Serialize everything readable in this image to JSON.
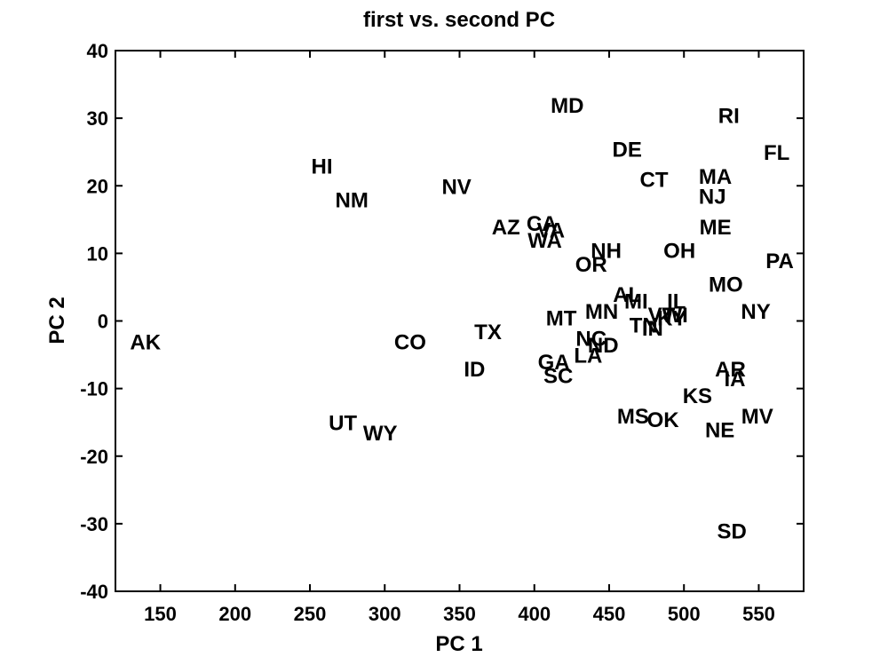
{
  "chart_data": {
    "type": "scatter",
    "title": "first vs. second PC",
    "xlabel": "PC 1",
    "ylabel": "PC 2",
    "xlim": [
      120,
      580
    ],
    "ylim": [
      -40,
      40
    ],
    "xticks": [
      150,
      200,
      250,
      300,
      350,
      400,
      450,
      500,
      550
    ],
    "yticks": [
      -40,
      -30,
      -20,
      -10,
      0,
      10,
      20,
      30,
      40
    ],
    "marker": "text-label",
    "grid": false,
    "box": true,
    "points": [
      {
        "label": "AK",
        "x": 140,
        "y": -3
      },
      {
        "label": "HI",
        "x": 258,
        "y": 23
      },
      {
        "label": "NM",
        "x": 278,
        "y": 18
      },
      {
        "label": "UT",
        "x": 272,
        "y": -15
      },
      {
        "label": "WY",
        "x": 297,
        "y": -16.5
      },
      {
        "label": "CO",
        "x": 317,
        "y": -3
      },
      {
        "label": "NV",
        "x": 348,
        "y": 20
      },
      {
        "label": "TX",
        "x": 369,
        "y": -1.5
      },
      {
        "label": "ID",
        "x": 360,
        "y": -7
      },
      {
        "label": "AZ",
        "x": 381,
        "y": 14
      },
      {
        "label": "CA",
        "x": 405,
        "y": 14.5
      },
      {
        "label": "VA",
        "x": 411,
        "y": 13.5
      },
      {
        "label": "WA",
        "x": 407,
        "y": 12
      },
      {
        "label": "MD",
        "x": 422,
        "y": 32
      },
      {
        "label": "MT",
        "x": 418,
        "y": 0.5
      },
      {
        "label": "GA",
        "x": 413,
        "y": -6
      },
      {
        "label": "SC",
        "x": 416,
        "y": -8
      },
      {
        "label": "NC",
        "x": 438,
        "y": -2.5
      },
      {
        "label": "LA",
        "x": 436,
        "y": -5
      },
      {
        "label": "ND",
        "x": 446,
        "y": -3.5
      },
      {
        "label": "MN",
        "x": 445,
        "y": 1.5
      },
      {
        "label": "NH",
        "x": 448,
        "y": 10.5
      },
      {
        "label": "OR",
        "x": 438,
        "y": 8.5
      },
      {
        "label": "AL",
        "x": 462,
        "y": 4
      },
      {
        "label": "MI",
        "x": 468,
        "y": 3
      },
      {
        "label": "TN",
        "x": 473,
        "y": -0.5
      },
      {
        "label": "IN",
        "x": 479,
        "y": -1
      },
      {
        "label": "VT",
        "x": 485,
        "y": 1
      },
      {
        "label": "KY",
        "x": 492,
        "y": 0.5
      },
      {
        "label": "WI",
        "x": 494,
        "y": 1
      },
      {
        "label": "IL",
        "x": 495,
        "y": 3
      },
      {
        "label": "DE",
        "x": 462,
        "y": 25.5
      },
      {
        "label": "CT",
        "x": 480,
        "y": 21
      },
      {
        "label": "OH",
        "x": 497,
        "y": 10.5
      },
      {
        "label": "MS",
        "x": 466,
        "y": -14
      },
      {
        "label": "OK",
        "x": 486,
        "y": -14.5
      },
      {
        "label": "KS",
        "x": 509,
        "y": -11
      },
      {
        "label": "MA",
        "x": 521,
        "y": 21.5
      },
      {
        "label": "NJ",
        "x": 519,
        "y": 18.5
      },
      {
        "label": "ME",
        "x": 521,
        "y": 14
      },
      {
        "label": "RI",
        "x": 530,
        "y": 30.5
      },
      {
        "label": "MO",
        "x": 528,
        "y": 5.5
      },
      {
        "label": "AR",
        "x": 531,
        "y": -7
      },
      {
        "label": "IA",
        "x": 534,
        "y": -8.5
      },
      {
        "label": "NE",
        "x": 524,
        "y": -16
      },
      {
        "label": "MV",
        "x": 549,
        "y": -14
      },
      {
        "label": "NY",
        "x": 548,
        "y": 1.5
      },
      {
        "label": "FL",
        "x": 562,
        "y": 25
      },
      {
        "label": "PA",
        "x": 564,
        "y": 9
      },
      {
        "label": "SD",
        "x": 532,
        "y": -31
      }
    ]
  }
}
